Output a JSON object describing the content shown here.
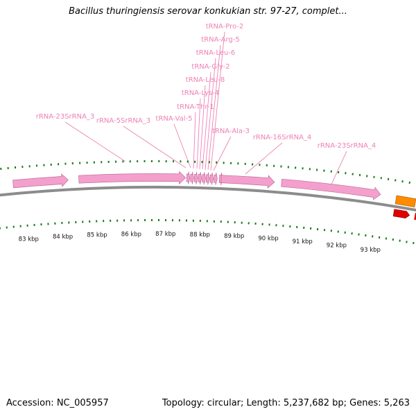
{
  "title": "Bacillus thuringiensis serovar konkukian str. 97-27, complet...",
  "footer": {
    "accession": "Accession: NC_005957",
    "summary": "Topology: circular; Length: 5,237,682 bp; Genes: 5,263"
  },
  "colors": {
    "rna_feature": "#f4a0cd",
    "rna_label": "#ee82b4",
    "backbone": "#8c8c8c",
    "tick": "#1a7a1a",
    "cds_orange": "#ff8c00",
    "cds_red": "#e00000"
  },
  "scale": {
    "unit": "kbp",
    "ticks": [
      {
        "kbp": 83,
        "label": "83 kbp"
      },
      {
        "kbp": 84,
        "label": "84 kbp"
      },
      {
        "kbp": 85,
        "label": "85 kbp"
      },
      {
        "kbp": 86,
        "label": "86 kbp"
      },
      {
        "kbp": 87,
        "label": "87 kbp"
      },
      {
        "kbp": 88,
        "label": "88 kbp"
      },
      {
        "kbp": 89,
        "label": "89 kbp"
      },
      {
        "kbp": 90,
        "label": "90 kbp"
      },
      {
        "kbp": 91,
        "label": "91 kbp"
      },
      {
        "kbp": 92,
        "label": "92 kbp"
      },
      {
        "kbp": 93,
        "label": "93 kbp"
      }
    ]
  },
  "features": [
    {
      "name": "rRNA-23SrRNA_3",
      "type": "rRNA",
      "start_kbp": 82.75,
      "end_kbp": 84.3
    },
    {
      "name": "rRNA-5SrRNA_3",
      "type": "rRNA",
      "start_kbp": 84.6,
      "end_kbp": 87.6
    },
    {
      "name": "tRNA-Val-5",
      "type": "tRNA",
      "start_kbp": 87.63,
      "end_kbp": 87.72
    },
    {
      "name": "tRNA-Thr-1",
      "type": "tRNA",
      "start_kbp": 87.74,
      "end_kbp": 87.83
    },
    {
      "name": "tRNA-Lys-4",
      "type": "tRNA",
      "start_kbp": 87.85,
      "end_kbp": 87.94
    },
    {
      "name": "tRNA-Leu-8",
      "type": "tRNA",
      "start_kbp": 87.96,
      "end_kbp": 88.05
    },
    {
      "name": "tRNA-Gly-2",
      "type": "tRNA",
      "start_kbp": 88.07,
      "end_kbp": 88.16
    },
    {
      "name": "tRNA-Leu-6",
      "type": "tRNA",
      "start_kbp": 88.18,
      "end_kbp": 88.27
    },
    {
      "name": "tRNA-Arg-5",
      "type": "tRNA",
      "start_kbp": 88.29,
      "end_kbp": 88.38
    },
    {
      "name": "tRNA-Pro-2",
      "type": "tRNA",
      "start_kbp": 88.4,
      "end_kbp": 88.49
    },
    {
      "name": "tRNA-Ala-3",
      "type": "tRNA",
      "start_kbp": 88.55,
      "end_kbp": 88.64
    },
    {
      "name": "rRNA-16SrRNA_4",
      "type": "rRNA",
      "start_kbp": 88.6,
      "end_kbp": 90.1
    },
    {
      "name": "rRNA-23SrRNA_4",
      "type": "rRNA",
      "start_kbp": 90.3,
      "end_kbp": 93.1
    }
  ]
}
